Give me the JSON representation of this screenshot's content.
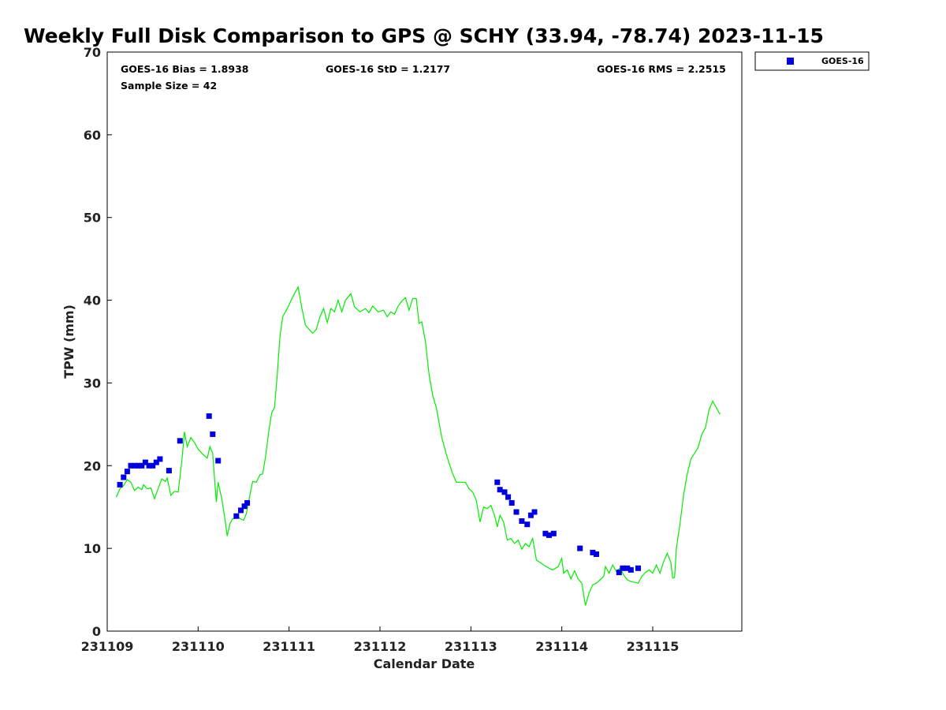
{
  "chart_data": {
    "type": "scatter",
    "title": "Weekly Full Disk Comparison to GPS @ SCHY (33.94, -78.74) 2023-11-15",
    "xlabel": "Calendar Date",
    "ylabel": "TPW (mm)",
    "xlim": [
      0,
      6.98
    ],
    "ylim": [
      0,
      70
    ],
    "yticks": [
      0,
      10,
      20,
      30,
      40,
      50,
      60,
      70
    ],
    "xticks": [
      {
        "value": 0,
        "label": "231109"
      },
      {
        "value": 1,
        "label": "231110"
      },
      {
        "value": 2,
        "label": "231111"
      },
      {
        "value": 3,
        "label": "231112"
      },
      {
        "value": 4,
        "label": "231113"
      },
      {
        "value": 5,
        "label": "231114"
      },
      {
        "value": 6,
        "label": "231115"
      }
    ],
    "stats": {
      "bias": "GOES-16 Bias = 1.8938",
      "std": "GOES-16 StD = 1.2177",
      "rms": "GOES-16 RMS = 2.2515",
      "sample": "Sample Size = 42"
    },
    "legend": {
      "label": "GOES-16",
      "position": "upper right, outside"
    },
    "colors": {
      "goes": "#0000dd",
      "gps": "#00ee00"
    },
    "series": [
      {
        "name": "GOES-16",
        "kind": "scatter",
        "points": [
          [
            0.14,
            17.7
          ],
          [
            0.18,
            18.6
          ],
          [
            0.22,
            19.3
          ],
          [
            0.26,
            20.0
          ],
          [
            0.3,
            20.0
          ],
          [
            0.34,
            20.0
          ],
          [
            0.38,
            20.0
          ],
          [
            0.42,
            20.4
          ],
          [
            0.46,
            20.0
          ],
          [
            0.5,
            20.0
          ],
          [
            0.54,
            20.4
          ],
          [
            0.58,
            20.8
          ],
          [
            0.68,
            19.4
          ],
          [
            0.8,
            23.0
          ],
          [
            1.12,
            26.0
          ],
          [
            1.16,
            23.8
          ],
          [
            1.22,
            20.6
          ],
          [
            1.42,
            13.9
          ],
          [
            1.47,
            14.6
          ],
          [
            1.51,
            15.1
          ],
          [
            1.54,
            15.5
          ],
          [
            4.29,
            18.0
          ],
          [
            4.32,
            17.1
          ],
          [
            4.37,
            16.8
          ],
          [
            4.41,
            16.2
          ],
          [
            4.45,
            15.5
          ],
          [
            4.5,
            14.4
          ],
          [
            4.56,
            13.3
          ],
          [
            4.62,
            12.9
          ],
          [
            4.66,
            14.0
          ],
          [
            4.7,
            14.4
          ],
          [
            4.82,
            11.8
          ],
          [
            4.86,
            11.6
          ],
          [
            4.91,
            11.8
          ],
          [
            5.2,
            10.0
          ],
          [
            5.34,
            9.5
          ],
          [
            5.38,
            9.3
          ],
          [
            5.63,
            7.1
          ],
          [
            5.67,
            7.6
          ],
          [
            5.72,
            7.6
          ],
          [
            5.76,
            7.4
          ],
          [
            5.84,
            7.6
          ]
        ]
      },
      {
        "name": "GPS",
        "kind": "line",
        "points": [
          [
            0.1,
            16.2
          ],
          [
            0.14,
            17.2
          ],
          [
            0.18,
            17.6
          ],
          [
            0.22,
            18.3
          ],
          [
            0.26,
            18.0
          ],
          [
            0.3,
            17.0
          ],
          [
            0.34,
            17.4
          ],
          [
            0.38,
            17.1
          ],
          [
            0.4,
            17.7
          ],
          [
            0.44,
            17.2
          ],
          [
            0.48,
            17.3
          ],
          [
            0.52,
            16.0
          ],
          [
            0.56,
            17.2
          ],
          [
            0.6,
            18.4
          ],
          [
            0.64,
            18.1
          ],
          [
            0.66,
            18.5
          ],
          [
            0.7,
            16.4
          ],
          [
            0.74,
            16.9
          ],
          [
            0.78,
            16.8
          ],
          [
            0.82,
            20.5
          ],
          [
            0.85,
            24.1
          ],
          [
            0.88,
            22.3
          ],
          [
            0.92,
            23.4
          ],
          [
            0.96,
            22.8
          ],
          [
            1.0,
            22.0
          ],
          [
            1.05,
            21.4
          ],
          [
            1.1,
            20.9
          ],
          [
            1.13,
            22.3
          ],
          [
            1.16,
            21.5
          ],
          [
            1.18,
            18.5
          ],
          [
            1.2,
            15.6
          ],
          [
            1.22,
            18.0
          ],
          [
            1.26,
            16.0
          ],
          [
            1.3,
            13.2
          ],
          [
            1.32,
            11.5
          ],
          [
            1.35,
            13.0
          ],
          [
            1.38,
            13.6
          ],
          [
            1.4,
            13.6
          ],
          [
            1.43,
            14.0
          ],
          [
            1.46,
            13.6
          ],
          [
            1.5,
            13.4
          ],
          [
            1.53,
            14.2
          ],
          [
            1.57,
            16.5
          ],
          [
            1.6,
            18.1
          ],
          [
            1.64,
            18.0
          ],
          [
            1.68,
            18.9
          ],
          [
            1.71,
            19.0
          ],
          [
            1.74,
            21.0
          ],
          [
            1.78,
            24.4
          ],
          [
            1.81,
            26.4
          ],
          [
            1.84,
            27.0
          ],
          [
            1.87,
            31.0
          ],
          [
            1.9,
            35.6
          ],
          [
            1.93,
            38.0
          ],
          [
            1.98,
            39.0
          ],
          [
            2.04,
            40.4
          ],
          [
            2.1,
            41.6
          ],
          [
            2.14,
            39.1
          ],
          [
            2.18,
            37.0
          ],
          [
            2.22,
            36.5
          ],
          [
            2.26,
            36.0
          ],
          [
            2.3,
            36.5
          ],
          [
            2.34,
            38.0
          ],
          [
            2.38,
            39.0
          ],
          [
            2.42,
            37.3
          ],
          [
            2.46,
            39.0
          ],
          [
            2.5,
            38.6
          ],
          [
            2.54,
            40.0
          ],
          [
            2.58,
            38.6
          ],
          [
            2.62,
            40.0
          ],
          [
            2.68,
            40.8
          ],
          [
            2.72,
            39.2
          ],
          [
            2.78,
            38.6
          ],
          [
            2.84,
            39.0
          ],
          [
            2.88,
            38.5
          ],
          [
            2.92,
            39.3
          ],
          [
            2.98,
            38.6
          ],
          [
            3.04,
            38.8
          ],
          [
            3.08,
            38.0
          ],
          [
            3.12,
            38.6
          ],
          [
            3.16,
            38.3
          ],
          [
            3.2,
            39.3
          ],
          [
            3.24,
            39.9
          ],
          [
            3.28,
            40.3
          ],
          [
            3.32,
            38.8
          ],
          [
            3.36,
            40.2
          ],
          [
            3.4,
            40.2
          ],
          [
            3.43,
            37.2
          ],
          [
            3.46,
            37.4
          ],
          [
            3.5,
            35.0
          ],
          [
            3.54,
            31.0
          ],
          [
            3.58,
            28.5
          ],
          [
            3.62,
            27.0
          ],
          [
            3.68,
            23.4
          ],
          [
            3.74,
            21.0
          ],
          [
            3.8,
            19.0
          ],
          [
            3.84,
            18.0
          ],
          [
            3.94,
            18.0
          ],
          [
            3.98,
            17.2
          ],
          [
            4.02,
            16.8
          ],
          [
            4.06,
            15.8
          ],
          [
            4.1,
            13.2
          ],
          [
            4.14,
            15.0
          ],
          [
            4.18,
            14.8
          ],
          [
            4.22,
            15.2
          ],
          [
            4.26,
            14.0
          ],
          [
            4.29,
            12.6
          ],
          [
            4.32,
            14.0
          ],
          [
            4.36,
            13.2
          ],
          [
            4.4,
            11.0
          ],
          [
            4.44,
            11.2
          ],
          [
            4.48,
            10.6
          ],
          [
            4.52,
            11.0
          ],
          [
            4.56,
            9.9
          ],
          [
            4.6,
            10.6
          ],
          [
            4.64,
            10.2
          ],
          [
            4.68,
            11.2
          ],
          [
            4.72,
            8.6
          ],
          [
            4.8,
            8.0
          ],
          [
            4.86,
            7.6
          ],
          [
            4.9,
            7.4
          ],
          [
            4.96,
            7.8
          ],
          [
            5.0,
            8.8
          ],
          [
            5.02,
            7.0
          ],
          [
            5.06,
            7.4
          ],
          [
            5.1,
            6.3
          ],
          [
            5.14,
            7.3
          ],
          [
            5.18,
            6.3
          ],
          [
            5.22,
            5.8
          ],
          [
            5.26,
            3.1
          ],
          [
            5.3,
            4.6
          ],
          [
            5.34,
            5.6
          ],
          [
            5.38,
            5.8
          ],
          [
            5.42,
            6.2
          ],
          [
            5.46,
            6.6
          ],
          [
            5.48,
            7.8
          ],
          [
            5.52,
            7.0
          ],
          [
            5.56,
            8.0
          ],
          [
            5.6,
            7.2
          ],
          [
            5.64,
            7.6
          ],
          [
            5.68,
            6.8
          ],
          [
            5.72,
            6.2
          ],
          [
            5.76,
            6.0
          ],
          [
            5.8,
            5.9
          ],
          [
            5.84,
            5.8
          ],
          [
            5.88,
            6.6
          ],
          [
            5.92,
            7.1
          ],
          [
            5.96,
            7.4
          ],
          [
            6.0,
            7.0
          ],
          [
            6.04,
            8.0
          ],
          [
            6.08,
            7.0
          ],
          [
            6.12,
            8.4
          ],
          [
            6.16,
            9.4
          ],
          [
            6.2,
            8.3
          ],
          [
            6.22,
            6.4
          ],
          [
            6.24,
            6.5
          ],
          [
            6.26,
            10.0
          ],
          [
            6.3,
            13.0
          ],
          [
            6.34,
            16.5
          ],
          [
            6.38,
            19.0
          ],
          [
            6.42,
            20.8
          ],
          [
            6.46,
            21.5
          ],
          [
            6.5,
            22.2
          ],
          [
            6.54,
            23.8
          ],
          [
            6.58,
            24.6
          ],
          [
            6.62,
            26.8
          ],
          [
            6.66,
            27.8
          ],
          [
            6.7,
            27.0
          ],
          [
            6.74,
            26.2
          ]
        ]
      }
    ]
  }
}
